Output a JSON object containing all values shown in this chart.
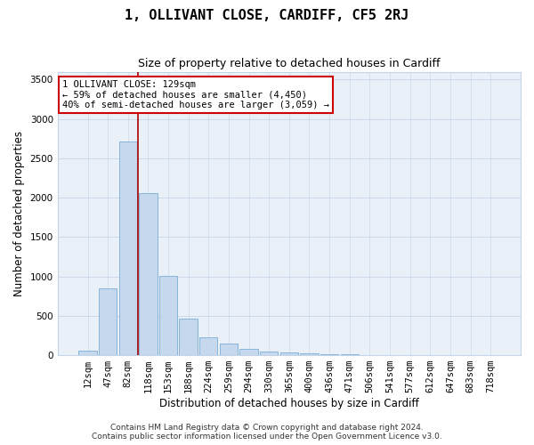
{
  "title": "1, OLLIVANT CLOSE, CARDIFF, CF5 2RJ",
  "subtitle": "Size of property relative to detached houses in Cardiff",
  "xlabel": "Distribution of detached houses by size in Cardiff",
  "ylabel": "Number of detached properties",
  "footer1": "Contains HM Land Registry data © Crown copyright and database right 2024.",
  "footer2": "Contains public sector information licensed under the Open Government Licence v3.0.",
  "categories": [
    "12sqm",
    "47sqm",
    "82sqm",
    "118sqm",
    "153sqm",
    "188sqm",
    "224sqm",
    "259sqm",
    "294sqm",
    "330sqm",
    "365sqm",
    "400sqm",
    "436sqm",
    "471sqm",
    "506sqm",
    "541sqm",
    "577sqm",
    "612sqm",
    "647sqm",
    "683sqm",
    "718sqm"
  ],
  "bar_values": [
    55,
    850,
    2710,
    2060,
    1010,
    460,
    230,
    150,
    75,
    45,
    30,
    20,
    15,
    10,
    0,
    0,
    0,
    0,
    0,
    0,
    0
  ],
  "bar_color": "#c5d8ed",
  "bar_edgecolor": "#7aadd4",
  "ylim": [
    0,
    3600
  ],
  "yticks": [
    0,
    500,
    1000,
    1500,
    2000,
    2500,
    3000,
    3500
  ],
  "vline_x": 2.5,
  "vline_color": "#aa0000",
  "annotation_text": "1 OLLIVANT CLOSE: 129sqm\n← 59% of detached houses are smaller (4,450)\n40% of semi-detached houses are larger (3,059) →",
  "annotation_box_color": "#ffffff",
  "annotation_box_edgecolor": "#cc0000",
  "background_color": "#eaf0f8",
  "grid_color": "#c5d5e8",
  "title_fontsize": 11,
  "subtitle_fontsize": 9,
  "axis_label_fontsize": 8.5,
  "tick_fontsize": 7.5,
  "annotation_fontsize": 7.5,
  "footer_fontsize": 6.5
}
